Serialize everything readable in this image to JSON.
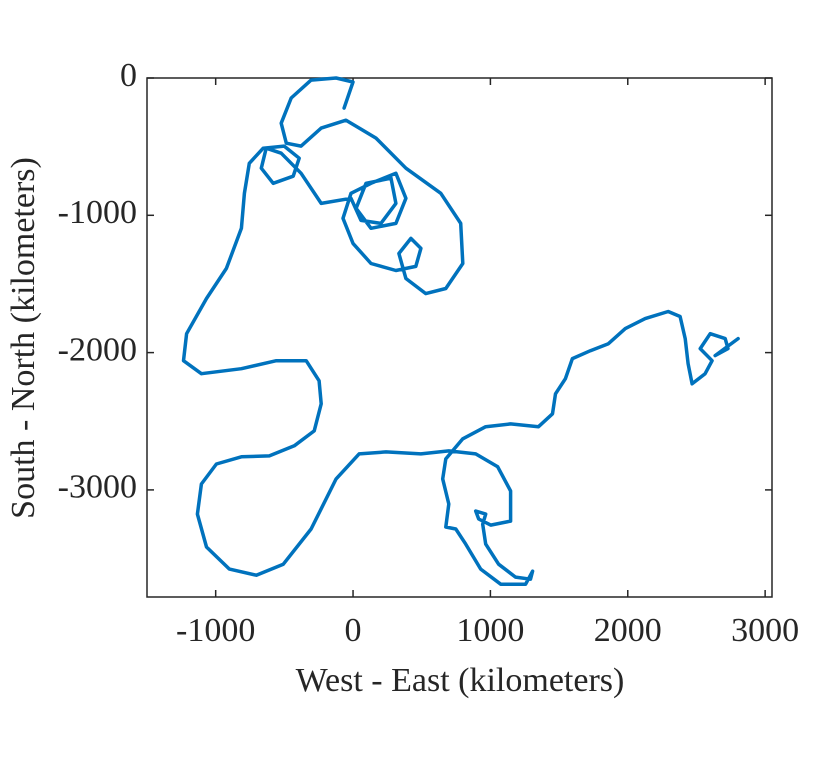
{
  "chart_data": {
    "type": "line",
    "xlabel": "West - East (kilometers)",
    "ylabel": "South - North (kilometers)",
    "color": "#0072bd",
    "xlim": [
      -1500,
      3050
    ],
    "ylim": [
      -3780,
      0
    ],
    "xticks": [
      -1000,
      0,
      1000,
      2000,
      3000
    ],
    "yticks": [
      0,
      -1000,
      -2000,
      -3000
    ],
    "x": [
      -65,
      0,
      -123,
      -305,
      -450,
      -523,
      -486,
      -378,
      -232,
      -51,
      167,
      385,
      639,
      784,
      799,
      675,
      530,
      385,
      334,
      421,
      494,
      457,
      312,
      131,
      0,
      -73,
      -15,
      131,
      312,
      385,
      312,
      131,
      22,
      94,
      276,
      312,
      203,
      58,
      -15,
      -232,
      -378,
      -523,
      -632,
      -668,
      -581,
      -436,
      -392,
      -501,
      -654,
      -755,
      -791,
      -813,
      -922,
      -1067,
      -1212,
      -1234,
      -1104,
      -813,
      -559,
      -341,
      -247,
      -232,
      -283,
      -428,
      -610,
      -813,
      -995,
      -1104,
      -1133,
      -1067,
      -900,
      -704,
      -508,
      -305,
      -123,
      44,
      240,
      494,
      697,
      893,
      1053,
      1147,
      1147,
      1002,
      915,
      893,
      966,
      944,
      966,
      1060,
      1183,
      1292,
      1307,
      1256,
      1075,
      929,
      820,
      748,
      675,
      697,
      653,
      675,
      799,
      966,
      1147,
      1350,
      1452,
      1474,
      1546,
      1597,
      1728,
      1859,
      1982,
      2127,
      2294,
      2381,
      2418,
      2439,
      2468,
      2563,
      2614,
      2527,
      2600,
      2709,
      2730,
      2636,
      2803
    ],
    "values": [
      -219,
      -29,
      0,
      -15,
      -146,
      -329,
      -475,
      -496,
      -365,
      -307,
      -438,
      -657,
      -840,
      -1059,
      -1351,
      -1533,
      -1570,
      -1460,
      -1278,
      -1168,
      -1241,
      -1372,
      -1402,
      -1351,
      -1205,
      -1022,
      -840,
      -767,
      -694,
      -876,
      -1059,
      -1095,
      -949,
      -767,
      -730,
      -913,
      -1059,
      -1037,
      -876,
      -913,
      -694,
      -548,
      -511,
      -657,
      -767,
      -715,
      -584,
      -496,
      -511,
      -621,
      -840,
      -1095,
      -1387,
      -1606,
      -1862,
      -2059,
      -2154,
      -2117,
      -2059,
      -2059,
      -2205,
      -2373,
      -2570,
      -2679,
      -2752,
      -2759,
      -2811,
      -2957,
      -3176,
      -3416,
      -3577,
      -3621,
      -3541,
      -3285,
      -2920,
      -2738,
      -2723,
      -2738,
      -2716,
      -2738,
      -2832,
      -3008,
      -3227,
      -3256,
      -3212,
      -3154,
      -3176,
      -3250,
      -3395,
      -3541,
      -3635,
      -3650,
      -3592,
      -3687,
      -3687,
      -3577,
      -3395,
      -3285,
      -3270,
      -3103,
      -2920,
      -2774,
      -2628,
      -2540,
      -2519,
      -2540,
      -2446,
      -2300,
      -2190,
      -2044,
      -1986,
      -1935,
      -1825,
      -1752,
      -1701,
      -1737,
      -1898,
      -2081,
      -2227,
      -2154,
      -2059,
      -1971,
      -1862,
      -1898,
      -1971,
      -2022,
      -1898
    ]
  }
}
